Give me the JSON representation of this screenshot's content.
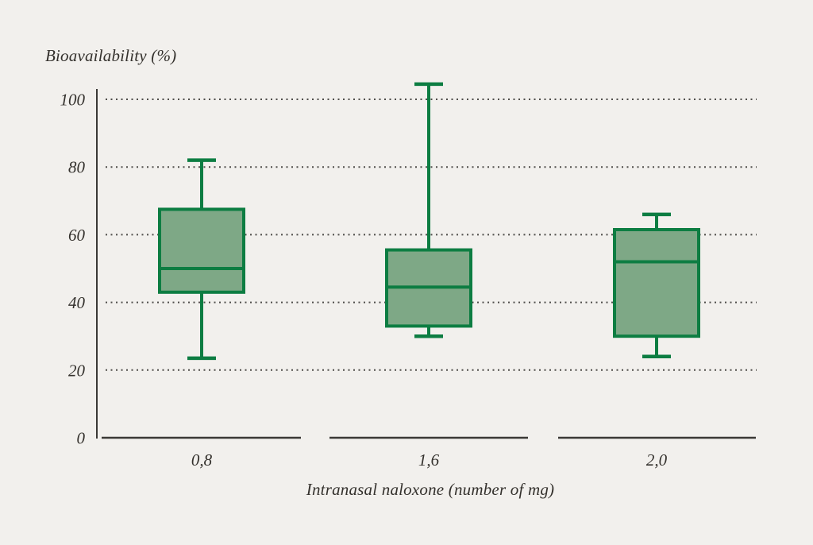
{
  "chart_data": {
    "type": "boxplot",
    "title": "Bioavailability (%)",
    "xlabel": "Intranasal naloxone (number of mg)",
    "ylabel": "Bioavailability (%)",
    "ylim": [
      0,
      100
    ],
    "yticks": [
      0,
      20,
      40,
      60,
      80,
      100
    ],
    "grid": "horizontal dotted lines at 20, 40, 60, 80, 100",
    "legend": "none",
    "categories": [
      "0,8",
      "1,6",
      "2,0"
    ],
    "series": [
      {
        "category": "0,8",
        "min": 23.5,
        "q1": 43,
        "median": 50,
        "q3": 67.5,
        "max": 82
      },
      {
        "category": "1,6",
        "min": 30,
        "q1": 33,
        "median": 44.5,
        "q3": 55.5,
        "max": 104.5
      },
      {
        "category": "2,0",
        "min": 24,
        "q1": 30,
        "median": 52,
        "q3": 61.5,
        "max": 66
      }
    ],
    "colors": {
      "box_fill": "#7ea886",
      "box_stroke": "#0d7d42",
      "axis": "#3b3936",
      "grid_dots": "#4f4d4a",
      "text": "#34312d",
      "background": "#f2f0ed"
    }
  }
}
